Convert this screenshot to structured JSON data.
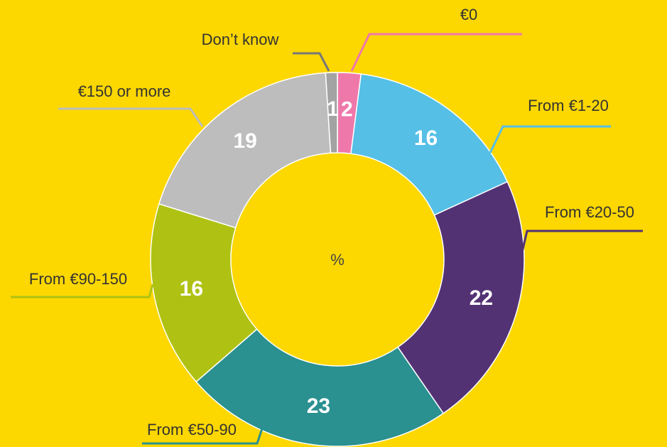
{
  "chart_data": {
    "type": "donut",
    "center_label": "%",
    "categories": [
      "€0",
      "From €1-20",
      "From €20-50",
      "From €50-90",
      "From €90-150",
      "€150 or more",
      "Don’t know"
    ],
    "values": [
      2,
      16,
      22,
      23,
      16,
      19,
      1
    ],
    "colors": [
      "#ef78ab",
      "#55bfe6",
      "#533274",
      "#2a9090",
      "#afc213",
      "#bdbdbd",
      "#a3a3a3"
    ]
  }
}
